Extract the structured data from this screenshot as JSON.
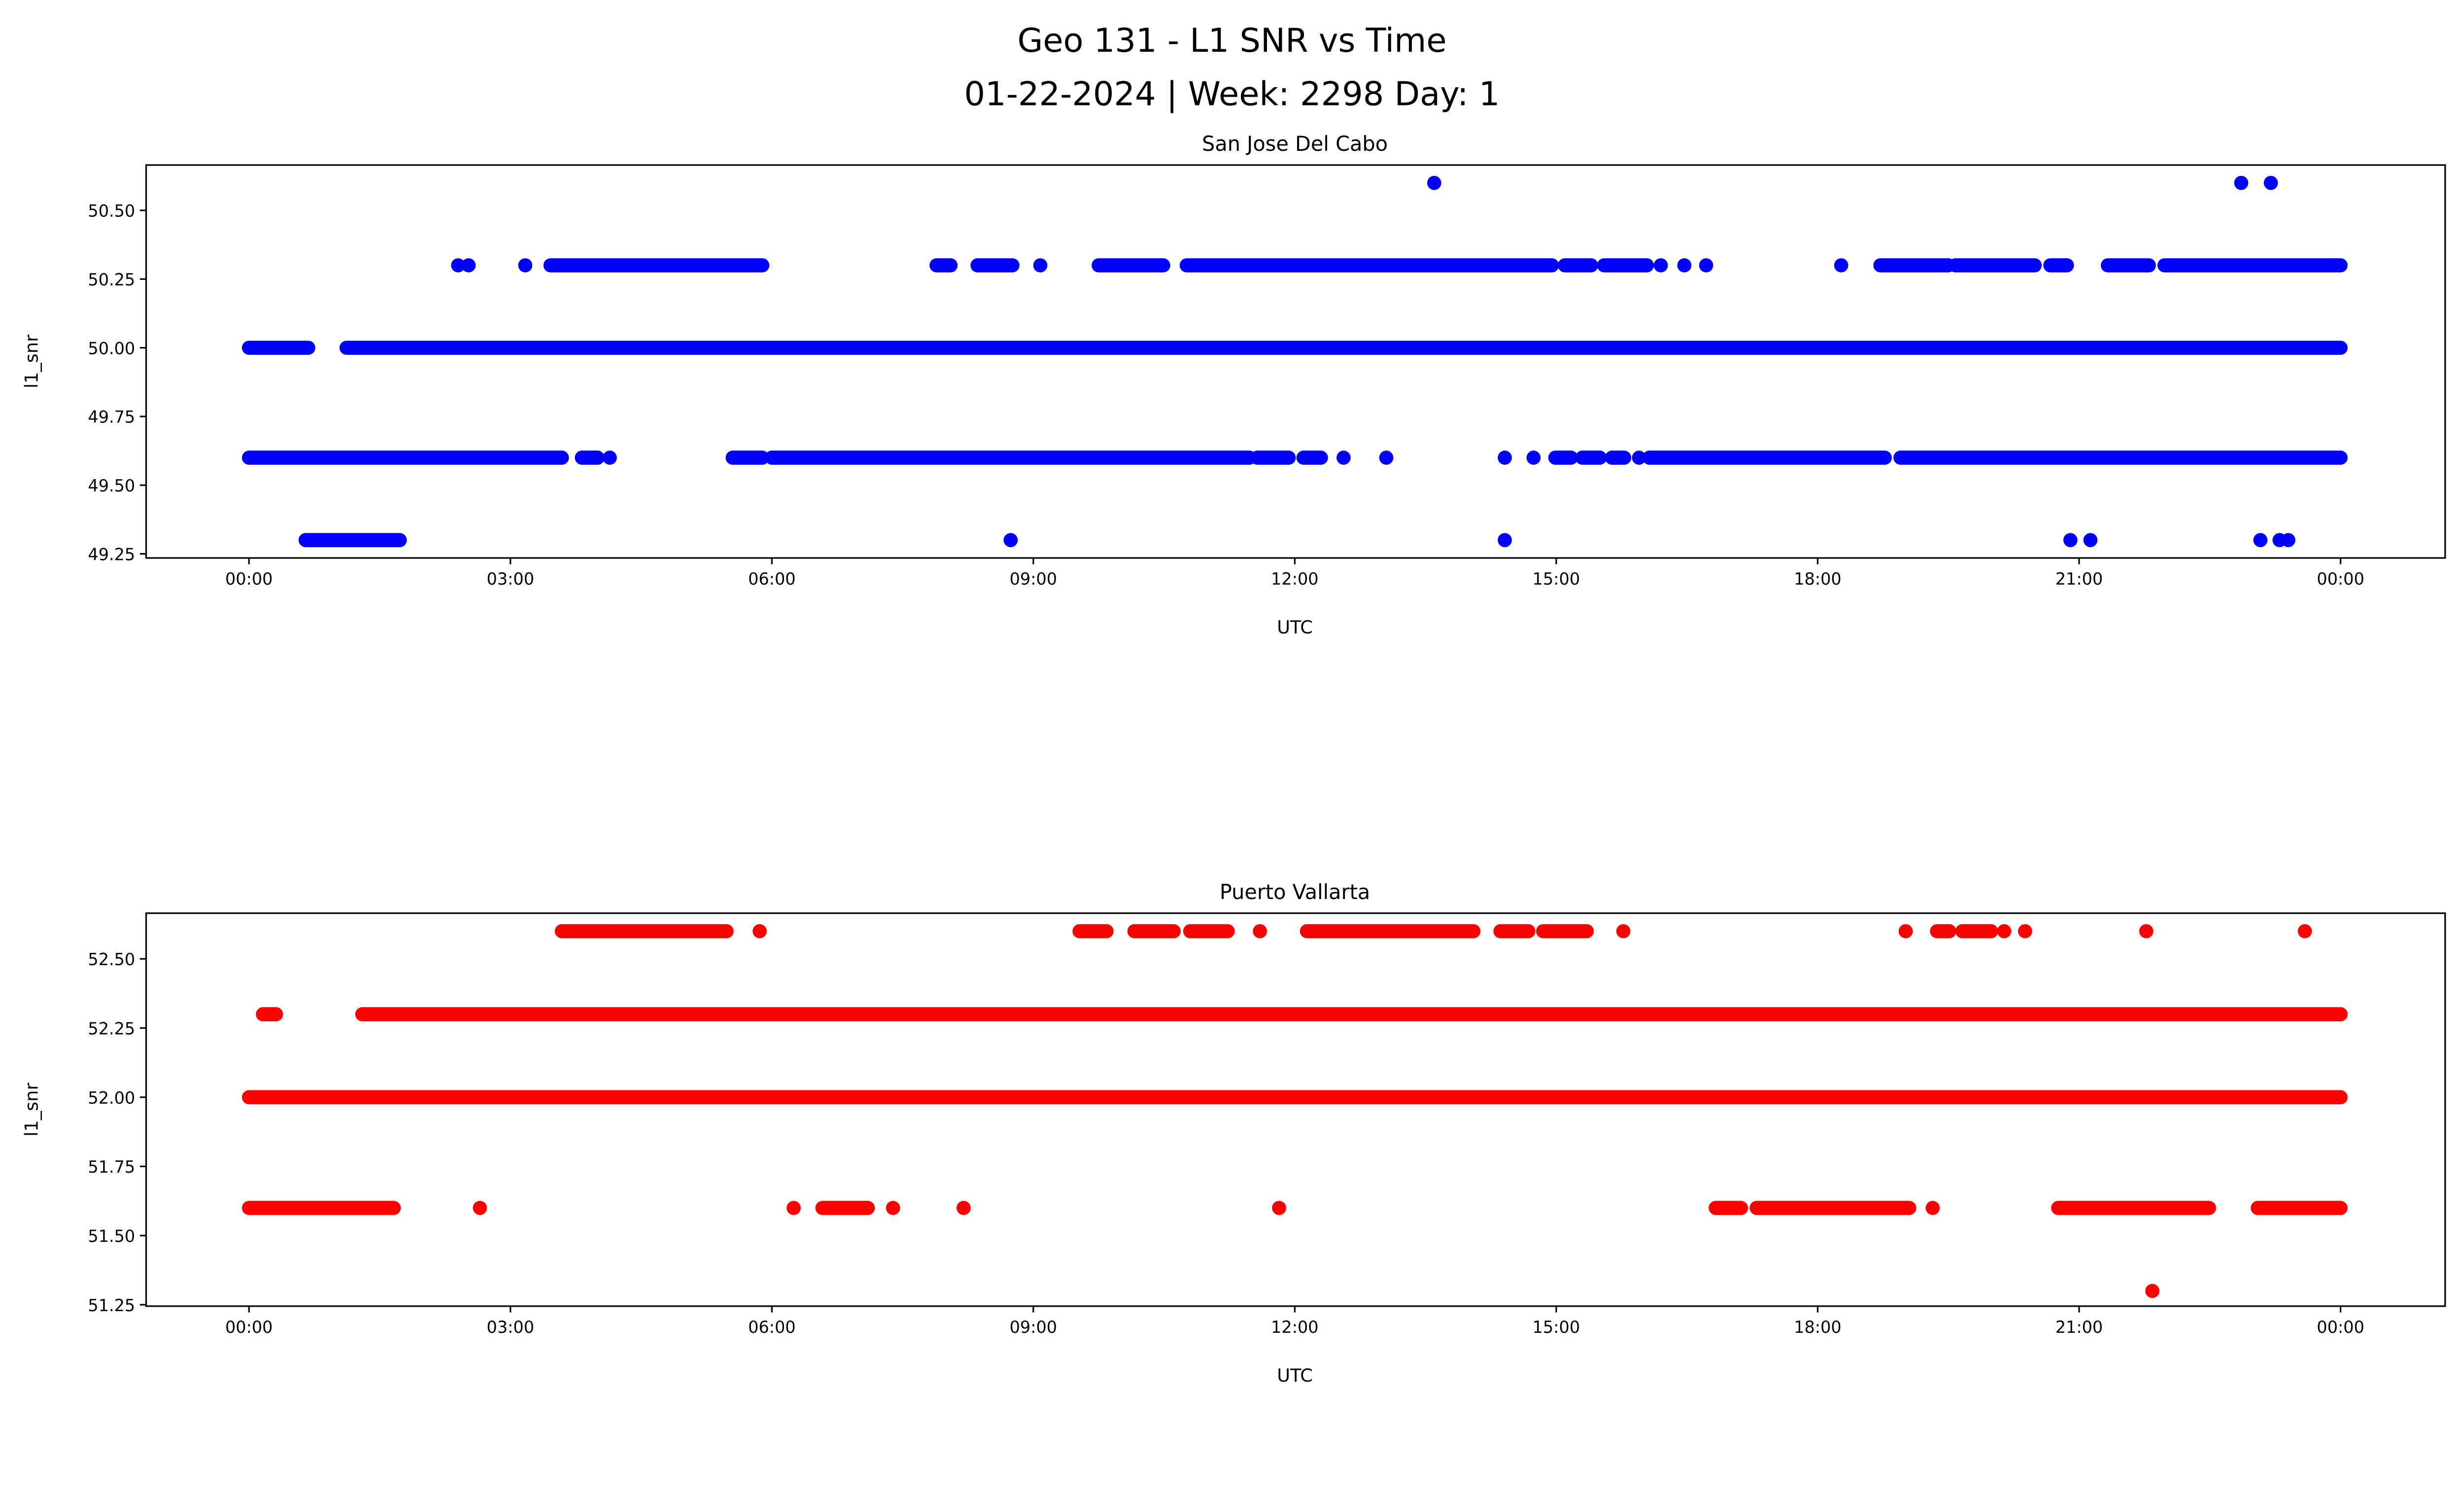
{
  "chart_data": {
    "type": "scatter",
    "title": "Geo 131 - L1 SNR vs Time",
    "subtitle": "01-22-2024 | Week: 2298 Day: 1",
    "note": "x values in hours UTC (0-24); 'runs' are densely sampled time ranges [start,end], 'points' are isolated samples",
    "panels": [
      {
        "title": "San Jose Del Cabo",
        "xlabel": "UTC",
        "ylabel": "l1_snr",
        "color": "#0000ff",
        "xlim": [
          -1.18,
          25.2
        ],
        "ylim": [
          49.235,
          50.665
        ],
        "yticks": [
          "49.25",
          "49.50",
          "49.75",
          "50.00",
          "50.25",
          "50.50"
        ],
        "ytick_values": [
          49.25,
          49.5,
          49.75,
          50.0,
          50.25,
          50.5
        ],
        "xticks": [
          "00:00",
          "03:00",
          "06:00",
          "09:00",
          "12:00",
          "15:00",
          "18:00",
          "21:00",
          "00:00"
        ],
        "xtick_values": [
          0,
          3,
          6,
          9,
          12,
          15,
          18,
          21,
          24
        ],
        "levels": [
          {
            "y": 50.6,
            "runs": [],
            "points": [
              13.6,
              22.86,
              23.2
            ]
          },
          {
            "y": 50.3,
            "runs": [
              [
                3.46,
                5.89
              ],
              [
                7.89,
                8.05
              ],
              [
                8.36,
                8.76
              ],
              [
                9.75,
                10.49
              ],
              [
                10.76,
                14.95
              ],
              [
                15.1,
                15.4
              ],
              [
                15.55,
                16.04
              ],
              [
                18.72,
                19.5
              ],
              [
                19.58,
                20.49
              ],
              [
                20.67,
                20.86
              ],
              [
                21.33,
                21.8
              ],
              [
                21.98,
                24.0
              ]
            ],
            "points": [
              2.4,
              2.52,
              3.17,
              9.08,
              16.2,
              16.47,
              16.72,
              18.27
            ]
          },
          {
            "y": 50.0,
            "runs": [
              [
                0.0,
                0.68
              ],
              [
                1.12,
                24.0
              ]
            ],
            "points": []
          },
          {
            "y": 49.6,
            "runs": [
              [
                0.0,
                3.59
              ],
              [
                3.82,
                4.0
              ],
              [
                5.55,
                5.89
              ],
              [
                6.0,
                11.48
              ],
              [
                11.57,
                11.93
              ],
              [
                12.1,
                12.3
              ],
              [
                14.99,
                15.17
              ],
              [
                15.3,
                15.5
              ],
              [
                15.64,
                15.78
              ],
              [
                16.07,
                18.77
              ],
              [
                18.95,
                24.0
              ]
            ],
            "points": [
              4.14,
              12.56,
              13.05,
              14.41,
              14.74,
              15.95
            ]
          },
          {
            "y": 49.3,
            "runs": [
              [
                0.65,
                1.73
              ]
            ],
            "points": [
              8.74,
              14.41,
              20.9,
              21.13,
              23.08,
              23.3,
              23.4
            ]
          }
        ]
      },
      {
        "title": "Puerto Vallarta",
        "xlabel": "UTC",
        "ylabel": "l1_snr",
        "color": "#ff0000",
        "xlim": [
          -1.18,
          25.2
        ],
        "ylim": [
          51.245,
          52.665
        ],
        "yticks": [
          "51.25",
          "51.50",
          "51.75",
          "52.00",
          "52.25",
          "52.50"
        ],
        "ytick_values": [
          51.25,
          51.5,
          51.75,
          52.0,
          52.25,
          52.5
        ],
        "xticks": [
          "00:00",
          "03:00",
          "06:00",
          "09:00",
          "12:00",
          "15:00",
          "18:00",
          "21:00",
          "00:00"
        ],
        "xtick_values": [
          0,
          3,
          6,
          9,
          12,
          15,
          18,
          21,
          24
        ],
        "levels": [
          {
            "y": 52.6,
            "runs": [
              [
                3.59,
                4.18
              ],
              [
                4.2,
                5.48
              ],
              [
                9.53,
                9.84
              ],
              [
                10.16,
                10.61
              ],
              [
                10.8,
                11.23
              ],
              [
                12.14,
                14.05
              ],
              [
                14.36,
                14.68
              ],
              [
                14.85,
                15.35
              ],
              [
                19.37,
                19.51
              ],
              [
                19.66,
                19.99
              ]
            ],
            "points": [
              5.86,
              11.6,
              15.77,
              19.01,
              20.14,
              20.38,
              21.77,
              23.59
            ]
          },
          {
            "y": 52.3,
            "runs": [
              [
                0.16,
                0.31
              ],
              [
                1.3,
                24.0
              ]
            ],
            "points": []
          },
          {
            "y": 52.0,
            "runs": [
              [
                0.0,
                24.0
              ]
            ],
            "points": []
          },
          {
            "y": 51.6,
            "runs": [
              [
                0.0,
                1.66
              ],
              [
                6.58,
                7.1
              ],
              [
                16.83,
                17.12
              ],
              [
                17.3,
                19.05
              ],
              [
                20.76,
                22.49
              ],
              [
                23.05,
                24.0
              ]
            ],
            "points": [
              2.65,
              6.25,
              7.39,
              8.2,
              11.82,
              19.32
            ]
          },
          {
            "y": 51.3,
            "runs": [],
            "points": [
              21.84
            ]
          }
        ]
      }
    ]
  }
}
